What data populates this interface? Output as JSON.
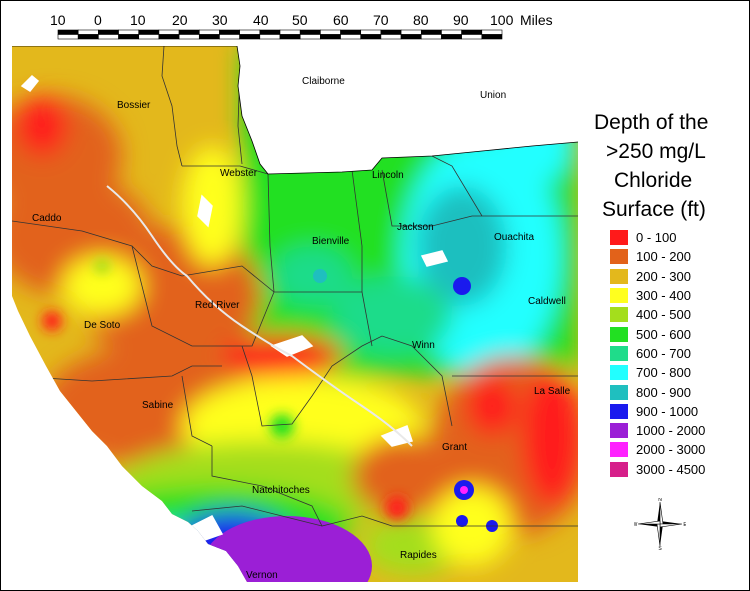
{
  "scale": {
    "ticks": [
      "10",
      "0",
      "10",
      "20",
      "30",
      "40",
      "50",
      "60",
      "70",
      "80",
      "90",
      "100"
    ],
    "unit": "Miles"
  },
  "legend": {
    "title_lines": [
      "Depth of the",
      ">250 mg/L",
      "Chloride",
      "Surface (ft)"
    ],
    "items": [
      {
        "label": "0 - 100",
        "color": "#ff1a1a"
      },
      {
        "label": "100 - 200",
        "color": "#e2621a"
      },
      {
        "label": "200 - 300",
        "color": "#e3b81c"
      },
      {
        "label": "300 - 400",
        "color": "#ffff1f"
      },
      {
        "label": "400 - 500",
        "color": "#a4de1c"
      },
      {
        "label": "500 - 600",
        "color": "#22e022"
      },
      {
        "label": "600 - 700",
        "color": "#1fdc8a"
      },
      {
        "label": "700 - 800",
        "color": "#22ffff"
      },
      {
        "label": "800 - 900",
        "color": "#1fbfbf"
      },
      {
        "label": "900 - 1000",
        "color": "#1a1aee"
      },
      {
        "label": "1000 - 2000",
        "color": "#9b1fd6"
      },
      {
        "label": "2000 - 3000",
        "color": "#ff22ff"
      },
      {
        "label": "3000 - 4500",
        "color": "#d61f8a"
      }
    ]
  },
  "parishes": [
    "Bossier",
    "Claiborne",
    "Union",
    "Webster",
    "Lincoln",
    "Caddo",
    "Jackson",
    "Bienville",
    "Ouachita",
    "Red River",
    "Caldwell",
    "De Soto",
    "Winn",
    "Sabine",
    "La Salle",
    "Grant",
    "Natchitoches",
    "Rapides",
    "Vernon"
  ],
  "compass": {
    "n": "N",
    "s": "S",
    "e": "E",
    "w": "W"
  }
}
